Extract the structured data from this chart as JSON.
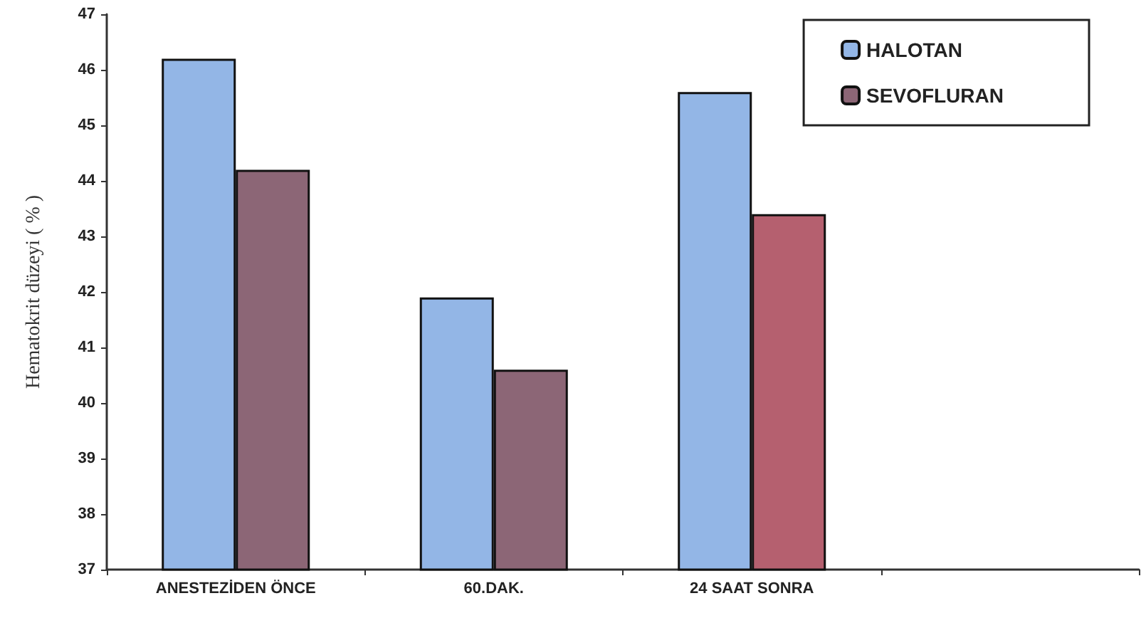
{
  "chart_data": {
    "type": "bar",
    "ylabel": "Hematokrit düzeyi ( % )",
    "categories": [
      "ANESTEZİDEN ÖNCE",
      "60.DAK.",
      "24 SAAT SONRA",
      null
    ],
    "series": [
      {
        "name": "HALOTAN",
        "color": "#93b6e6",
        "values": [
          46.2,
          41.9,
          45.6,
          null
        ]
      },
      {
        "name": "SEVOFLURAN",
        "color": "#8c6676",
        "colors": [
          "#8c6676",
          "#8c6676",
          "#b5606f",
          null
        ],
        "values": [
          44.2,
          40.6,
          43.4,
          null
        ]
      }
    ],
    "ylim": [
      37,
      47
    ],
    "yticks": [
      37,
      38,
      39,
      40,
      41,
      42,
      43,
      44,
      45,
      46,
      47
    ],
    "grid": false,
    "legend": "top right"
  }
}
